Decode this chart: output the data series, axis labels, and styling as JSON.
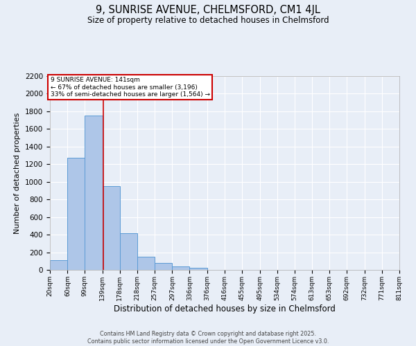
{
  "title1": "9, SUNRISE AVENUE, CHELMSFORD, CM1 4JL",
  "title2": "Size of property relative to detached houses in Chelmsford",
  "xlabel": "Distribution of detached houses by size in Chelmsford",
  "ylabel": "Number of detached properties",
  "bin_labels": [
    "20sqm",
    "60sqm",
    "99sqm",
    "139sqm",
    "178sqm",
    "218sqm",
    "257sqm",
    "297sqm",
    "336sqm",
    "376sqm",
    "416sqm",
    "455sqm",
    "495sqm",
    "534sqm",
    "574sqm",
    "613sqm",
    "653sqm",
    "692sqm",
    "732sqm",
    "771sqm",
    "811sqm"
  ],
  "bin_edges": [
    20,
    60,
    99,
    139,
    178,
    218,
    257,
    297,
    336,
    376,
    416,
    455,
    495,
    534,
    574,
    613,
    653,
    692,
    732,
    771,
    811
  ],
  "bar_heights": [
    110,
    1270,
    1750,
    950,
    420,
    150,
    80,
    40,
    20,
    0,
    0,
    0,
    0,
    0,
    0,
    0,
    0,
    0,
    0,
    0
  ],
  "bar_color": "#aec6e8",
  "bar_edge_color": "#5b9bd5",
  "property_size": 141,
  "property_line_color": "#cc0000",
  "annotation_line1": "9 SUNRISE AVENUE: 141sqm",
  "annotation_line2": "← 67% of detached houses are smaller (3,196)",
  "annotation_line3": "33% of semi-detached houses are larger (1,564) →",
  "annotation_box_color": "#cc0000",
  "ylim": [
    0,
    2200
  ],
  "yticks": [
    0,
    200,
    400,
    600,
    800,
    1000,
    1200,
    1400,
    1600,
    1800,
    2000,
    2200
  ],
  "bg_color": "#e8eef7",
  "grid_color": "#ffffff",
  "footer_line1": "Contains HM Land Registry data © Crown copyright and database right 2025.",
  "footer_line2": "Contains public sector information licensed under the Open Government Licence v3.0."
}
